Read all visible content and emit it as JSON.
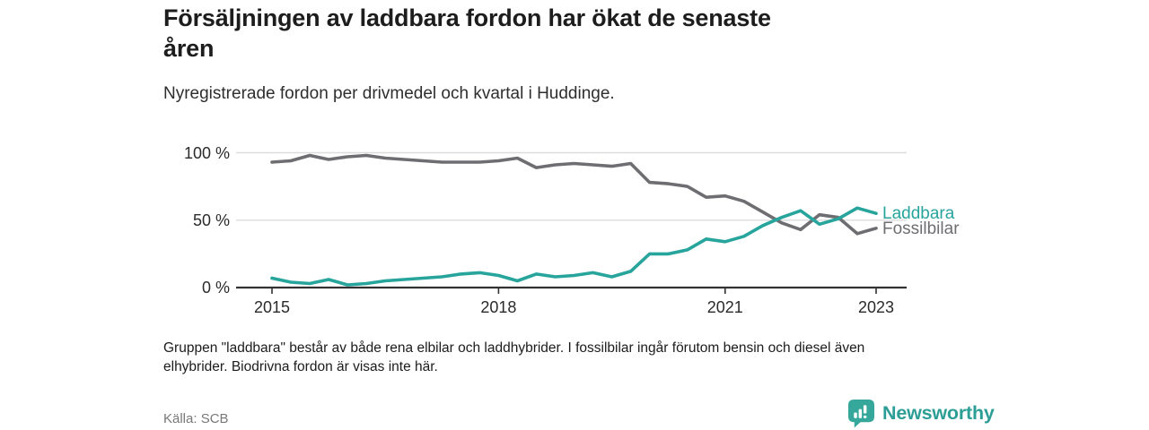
{
  "header": {
    "title_lines": [
      "Försäljningen av laddbara fordon har ökat de senaste",
      "åren"
    ],
    "subtitle": "Nyregistrerade fordon per drivmedel och kvartal i Huddinge."
  },
  "chart_data": {
    "type": "line",
    "title": "Nyregistrerade fordon per drivmedel och kvartal i Huddinge",
    "x_unit": "kvartal",
    "categories": [
      "2015 K1",
      "2015 K2",
      "2015 K3",
      "2015 K4",
      "2016 K1",
      "2016 K2",
      "2016 K3",
      "2016 K4",
      "2017 K1",
      "2017 K2",
      "2017 K3",
      "2017 K4",
      "2018 K1",
      "2018 K2",
      "2018 K3",
      "2018 K4",
      "2019 K1",
      "2019 K2",
      "2019 K3",
      "2019 K4",
      "2020 K1",
      "2020 K2",
      "2020 K3",
      "2020 K4",
      "2021 K1",
      "2021 K2",
      "2021 K3",
      "2021 K4",
      "2022 K1",
      "2022 K2",
      "2022 K3",
      "2022 K4",
      "2023 K1"
    ],
    "series": [
      {
        "name": "Laddbara",
        "color": "#27a59c",
        "values": [
          7,
          4,
          3,
          6,
          2,
          3,
          5,
          6,
          7,
          8,
          10,
          11,
          9,
          5,
          10,
          8,
          9,
          11,
          8,
          12,
          25,
          25,
          28,
          36,
          34,
          38,
          46,
          52,
          57,
          47,
          51,
          59,
          55
        ]
      },
      {
        "name": "Fossilbilar",
        "color": "#6e6e72",
        "values": [
          93,
          94,
          98,
          95,
          97,
          98,
          96,
          95,
          94,
          93,
          93,
          93,
          94,
          96,
          89,
          91,
          92,
          91,
          90,
          92,
          78,
          77,
          75,
          67,
          68,
          64,
          56,
          48,
          43,
          54,
          52,
          40,
          44
        ]
      }
    ],
    "ylim": [
      0,
      100
    ],
    "yticks": [
      "0 %",
      "50 %",
      "100 %"
    ],
    "xticks": [
      "2015",
      "2018",
      "2021",
      "2023"
    ],
    "grid": "horizontal-50-100",
    "legend": "labels-at-line-end",
    "axis_color": "#333333",
    "gridline_color": "#dcdcdc"
  },
  "footnote_lines": [
    "Gruppen \"laddbara\" består av både rena elbilar och laddhybrider. I fossilbilar ingår förutom bensin och diesel även",
    "elhybrider. Biodrivna fordon är visas inte här."
  ],
  "footer": {
    "source": "Källa: SCB",
    "brand": "Newsworthy",
    "brand_color": "#2d9e95",
    "logo_color": "#35a79b"
  }
}
